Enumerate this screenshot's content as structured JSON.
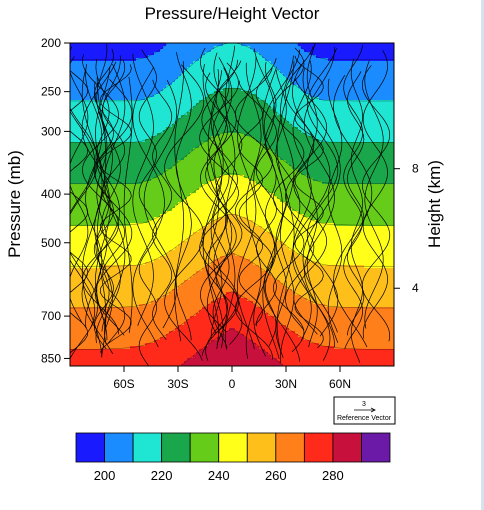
{
  "chart_data": {
    "type": "contour",
    "title": "Pressure/Height Vector",
    "left_axis": {
      "label": "Pressure (mb)",
      "ticks": [
        200,
        250,
        300,
        400,
        500,
        700,
        850
      ],
      "scale": "log",
      "range": [
        200,
        880
      ]
    },
    "right_axis": {
      "label": "Height (km)",
      "ticks": [
        "8",
        "4"
      ]
    },
    "x_axis": {
      "ticks": [
        "60S",
        "30S",
        "0",
        "30N",
        "60N"
      ],
      "range": [
        -90,
        90
      ]
    },
    "contour_levels": [
      200,
      210,
      220,
      230,
      240,
      250,
      260,
      270,
      280,
      290
    ],
    "colorbar": {
      "colors": [
        "#1a1aff",
        "#1a8cff",
        "#1fe6d2",
        "#1aa64a",
        "#66cc1a",
        "#ffff1a",
        "#ffbf1a",
        "#ff7f1a",
        "#ff2a1a",
        "#c8103c",
        "#6a1aa6"
      ],
      "labels": [
        "200",
        "220",
        "240",
        "260",
        "280"
      ]
    },
    "reference_vector": {
      "value": "3",
      "label": "Reference Vector"
    },
    "grid": false
  }
}
